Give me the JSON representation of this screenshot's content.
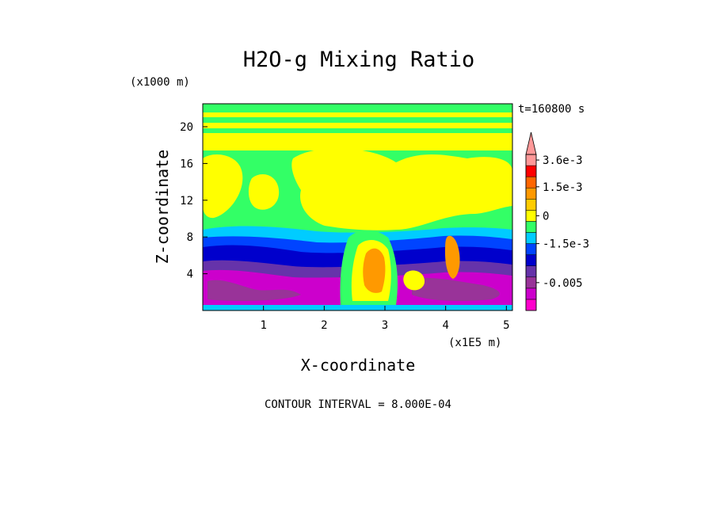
{
  "chart_data": {
    "type": "heatmap",
    "title": "H2O-g Mixing Ratio",
    "xlabel": "X-coordinate",
    "ylabel": "Z-coordinate",
    "x_scale_note": "(x1E5 m)",
    "y_scale_note": "(x1000 m)",
    "time_label": "t=160800 s",
    "footer": "CONTOUR INTERVAL = 8.000E-04",
    "xlim": [
      0,
      5.1
    ],
    "ylim": [
      0,
      22.5
    ],
    "x_ticks": [
      "1",
      "2",
      "3",
      "4",
      "5"
    ],
    "x_tick_values": [
      1,
      2,
      3,
      4,
      5
    ],
    "y_ticks": [
      "4",
      "8",
      "12",
      "16",
      "20"
    ],
    "y_tick_values": [
      4,
      8,
      12,
      16,
      20
    ],
    "grid": false,
    "colorbar": {
      "colors": [
        "#ff00cc",
        "#cc00cc",
        "#993399",
        "#6633aa",
        "#0000cc",
        "#0044ff",
        "#00ccff",
        "#33ff66",
        "#ffff00",
        "#ffcc00",
        "#ff9900",
        "#ff6600",
        "#ff0000",
        "#ff9999"
      ],
      "labels": [
        {
          "text": "3.6e-3",
          "at_band": 13
        },
        {
          "text": "1.5e-3",
          "at_band": 10.6
        },
        {
          "text": "0",
          "at_band": 8
        },
        {
          "text": "-1.5e-3",
          "at_band": 5.5
        },
        {
          "text": "-0.005",
          "at_band": 2
        }
      ]
    },
    "regions": [
      {
        "level": "0 to 8.0E-04",
        "z_range": [
          9,
          22.5
        ],
        "description": "upper layer"
      },
      {
        "level": "-1.5e-3",
        "z_range": [
          6,
          9
        ],
        "description": "mid layer"
      },
      {
        "level": "-0.005",
        "z_range": [
          0.5,
          6
        ],
        "description": "lower layer"
      },
      {
        "level": "1.5e-3",
        "x_range": [
          2.6,
          3.2
        ],
        "z_range": [
          3,
          8
        ],
        "description": "central plume"
      }
    ]
  }
}
